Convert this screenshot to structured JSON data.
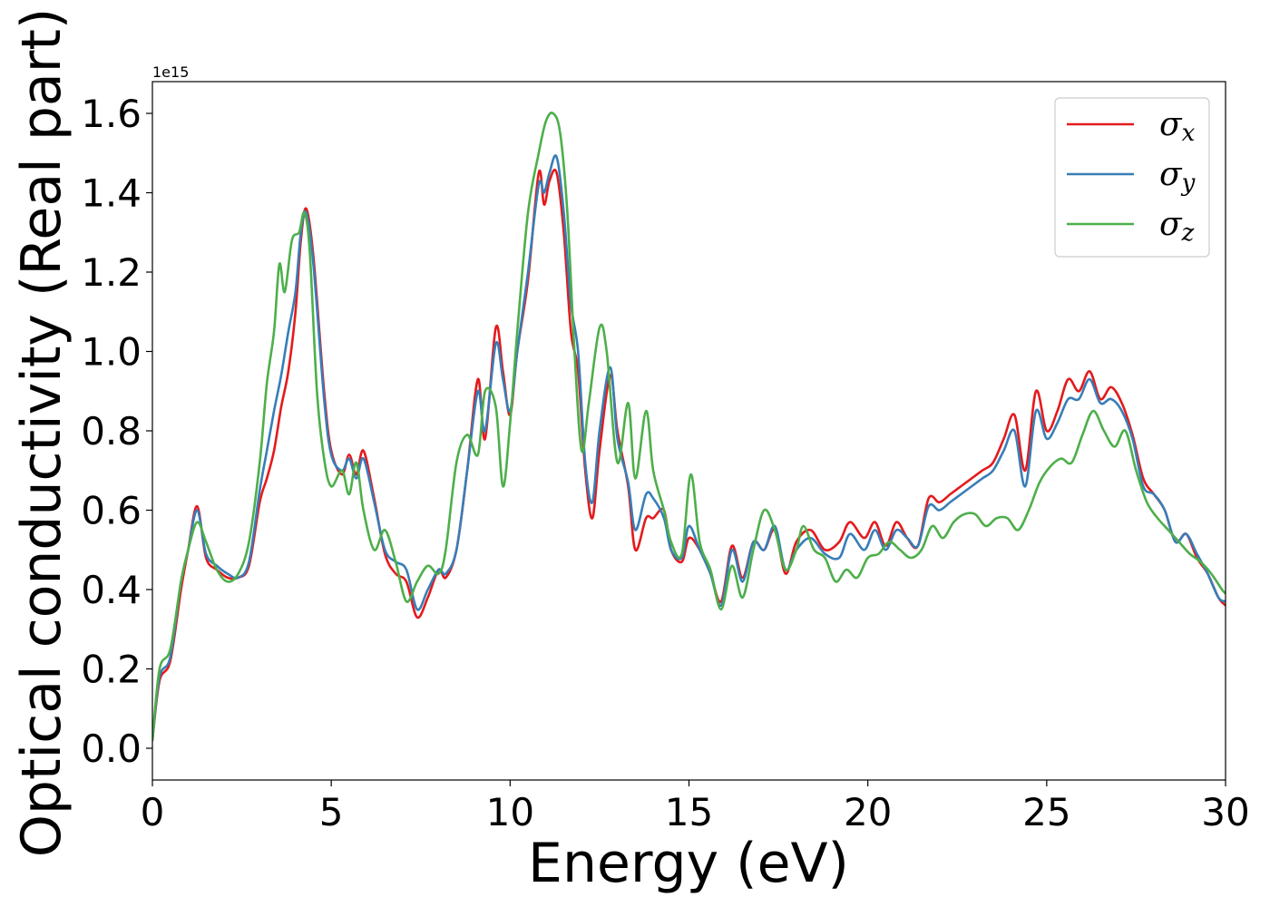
{
  "chart_data": {
    "type": "line",
    "title": "",
    "xlabel": "Energy (eV)",
    "ylabel": "Optical conductivity (Real part)",
    "y_offset_label": "1e15",
    "xlim": [
      0,
      30
    ],
    "ylim": [
      -0.08,
      1.68
    ],
    "xticks": [
      0,
      5,
      10,
      15,
      20,
      25,
      30
    ],
    "xtick_labels": [
      "0",
      "5",
      "10",
      "15",
      "20",
      "25",
      "30"
    ],
    "yticks": [
      0.0,
      0.2,
      0.4,
      0.6,
      0.8,
      1.0,
      1.2,
      1.4,
      1.6
    ],
    "ytick_labels": [
      "0.0",
      "0.2",
      "0.4",
      "0.6",
      "0.8",
      "1.0",
      "1.2",
      "1.4",
      "1.6"
    ],
    "grid": false,
    "legend_position": "top-right",
    "series": [
      {
        "name": "σx",
        "symbol": "σ",
        "subscript": "x",
        "color": "#e41a1c",
        "x": [
          0,
          0.2,
          0.5,
          0.8,
          1.0,
          1.25,
          1.5,
          1.8,
          2.1,
          2.4,
          2.7,
          3.0,
          3.2,
          3.4,
          3.6,
          3.8,
          4.0,
          4.15,
          4.3,
          4.5,
          4.8,
          5.0,
          5.3,
          5.5,
          5.7,
          5.9,
          6.2,
          6.5,
          6.8,
          7.1,
          7.4,
          7.7,
          8.0,
          8.2,
          8.5,
          8.8,
          9.1,
          9.3,
          9.6,
          9.8,
          10.0,
          10.2,
          10.5,
          10.8,
          10.95,
          11.1,
          11.3,
          11.5,
          11.7,
          11.9,
          12.1,
          12.3,
          12.5,
          12.8,
          13.0,
          13.3,
          13.5,
          13.8,
          14.0,
          14.3,
          14.5,
          14.8,
          15.0,
          15.3,
          15.6,
          15.9,
          16.2,
          16.5,
          16.8,
          17.1,
          17.4,
          17.7,
          18.0,
          18.4,
          18.8,
          19.2,
          19.5,
          19.9,
          20.2,
          20.5,
          20.8,
          21.1,
          21.4,
          21.7,
          22.0,
          22.3,
          22.6,
          22.9,
          23.2,
          23.5,
          23.8,
          24.1,
          24.4,
          24.7,
          25.0,
          25.3,
          25.6,
          25.9,
          26.2,
          26.5,
          26.8,
          27.1,
          27.4,
          27.7,
          28.0,
          28.3,
          28.6,
          28.9,
          29.2,
          29.5,
          29.8,
          30.0
        ],
        "y": [
          0.02,
          0.17,
          0.22,
          0.4,
          0.5,
          0.61,
          0.48,
          0.45,
          0.43,
          0.43,
          0.46,
          0.62,
          0.68,
          0.75,
          0.86,
          0.95,
          1.1,
          1.28,
          1.36,
          1.24,
          0.9,
          0.75,
          0.69,
          0.74,
          0.69,
          0.75,
          0.63,
          0.49,
          0.44,
          0.42,
          0.33,
          0.38,
          0.45,
          0.43,
          0.5,
          0.7,
          0.93,
          0.78,
          1.06,
          0.95,
          0.84,
          1.0,
          1.18,
          1.45,
          1.37,
          1.43,
          1.45,
          1.3,
          1.05,
          0.95,
          0.7,
          0.58,
          0.75,
          0.94,
          0.8,
          0.66,
          0.5,
          0.58,
          0.58,
          0.6,
          0.5,
          0.47,
          0.53,
          0.5,
          0.44,
          0.37,
          0.51,
          0.43,
          0.52,
          0.5,
          0.55,
          0.44,
          0.52,
          0.55,
          0.5,
          0.52,
          0.57,
          0.53,
          0.57,
          0.51,
          0.57,
          0.53,
          0.51,
          0.63,
          0.62,
          0.64,
          0.66,
          0.68,
          0.7,
          0.72,
          0.78,
          0.84,
          0.7,
          0.9,
          0.8,
          0.85,
          0.93,
          0.9,
          0.95,
          0.88,
          0.91,
          0.87,
          0.79,
          0.68,
          0.64,
          0.6,
          0.52,
          0.54,
          0.48,
          0.44,
          0.38,
          0.36
        ]
      },
      {
        "name": "σy",
        "symbol": "σ",
        "subscript": "y",
        "color": "#377eb8",
        "x": [
          0,
          0.2,
          0.5,
          0.8,
          1.0,
          1.25,
          1.5,
          1.8,
          2.1,
          2.4,
          2.7,
          3.0,
          3.2,
          3.4,
          3.6,
          3.8,
          4.0,
          4.15,
          4.3,
          4.5,
          4.8,
          5.0,
          5.3,
          5.5,
          5.7,
          5.9,
          6.2,
          6.5,
          6.8,
          7.1,
          7.4,
          7.7,
          8.0,
          8.2,
          8.5,
          8.8,
          9.1,
          9.3,
          9.6,
          9.8,
          10.0,
          10.2,
          10.5,
          10.8,
          10.95,
          11.1,
          11.3,
          11.5,
          11.7,
          11.9,
          12.1,
          12.3,
          12.5,
          12.8,
          13.0,
          13.3,
          13.5,
          13.8,
          14.0,
          14.3,
          14.5,
          14.8,
          15.0,
          15.3,
          15.6,
          15.9,
          16.2,
          16.5,
          16.8,
          17.1,
          17.4,
          17.7,
          18.0,
          18.4,
          18.8,
          19.2,
          19.5,
          19.9,
          20.2,
          20.5,
          20.8,
          21.1,
          21.4,
          21.7,
          22.0,
          22.3,
          22.6,
          22.9,
          23.2,
          23.5,
          23.8,
          24.1,
          24.4,
          24.7,
          25.0,
          25.3,
          25.6,
          25.9,
          26.2,
          26.5,
          26.8,
          27.1,
          27.4,
          27.7,
          28.0,
          28.3,
          28.6,
          28.9,
          29.2,
          29.5,
          29.8,
          30.0
        ],
        "y": [
          0.02,
          0.18,
          0.23,
          0.42,
          0.5,
          0.6,
          0.49,
          0.46,
          0.44,
          0.43,
          0.47,
          0.65,
          0.75,
          0.85,
          0.94,
          1.05,
          1.15,
          1.3,
          1.35,
          1.22,
          0.88,
          0.74,
          0.7,
          0.73,
          0.68,
          0.73,
          0.62,
          0.5,
          0.47,
          0.45,
          0.35,
          0.4,
          0.45,
          0.44,
          0.5,
          0.7,
          0.9,
          0.8,
          1.02,
          0.93,
          0.85,
          1.0,
          1.2,
          1.42,
          1.4,
          1.45,
          1.49,
          1.35,
          1.12,
          1.0,
          0.72,
          0.62,
          0.8,
          0.96,
          0.78,
          0.67,
          0.55,
          0.64,
          0.63,
          0.58,
          0.5,
          0.48,
          0.56,
          0.5,
          0.44,
          0.36,
          0.5,
          0.42,
          0.52,
          0.5,
          0.56,
          0.45,
          0.5,
          0.53,
          0.49,
          0.48,
          0.54,
          0.5,
          0.55,
          0.5,
          0.55,
          0.53,
          0.51,
          0.61,
          0.6,
          0.62,
          0.64,
          0.66,
          0.68,
          0.7,
          0.75,
          0.8,
          0.66,
          0.85,
          0.78,
          0.82,
          0.88,
          0.88,
          0.93,
          0.87,
          0.88,
          0.85,
          0.78,
          0.66,
          0.64,
          0.6,
          0.52,
          0.54,
          0.49,
          0.44,
          0.38,
          0.37
        ]
      },
      {
        "name": "σz",
        "symbol": "σ",
        "subscript": "z",
        "color": "#4daf4a",
        "x": [
          0,
          0.2,
          0.5,
          0.8,
          1.0,
          1.25,
          1.5,
          1.8,
          2.1,
          2.4,
          2.7,
          3.0,
          3.2,
          3.4,
          3.55,
          3.7,
          3.9,
          4.1,
          4.25,
          4.4,
          4.6,
          4.8,
          5.0,
          5.3,
          5.5,
          5.7,
          5.9,
          6.2,
          6.5,
          6.8,
          7.1,
          7.4,
          7.7,
          8.0,
          8.2,
          8.5,
          8.8,
          9.1,
          9.3,
          9.6,
          9.8,
          10.0,
          10.2,
          10.5,
          10.8,
          11.0,
          11.2,
          11.4,
          11.6,
          11.8,
          12.0,
          12.2,
          12.5,
          12.7,
          13.0,
          13.3,
          13.5,
          13.8,
          14.0,
          14.3,
          14.5,
          14.8,
          15.05,
          15.3,
          15.6,
          15.9,
          16.2,
          16.5,
          16.8,
          17.1,
          17.4,
          17.7,
          18.0,
          18.2,
          18.5,
          18.8,
          19.1,
          19.4,
          19.7,
          20.0,
          20.3,
          20.6,
          20.9,
          21.2,
          21.5,
          21.8,
          22.1,
          22.4,
          22.7,
          23.0,
          23.3,
          23.6,
          23.9,
          24.2,
          24.5,
          24.8,
          25.1,
          25.4,
          25.7,
          26.0,
          26.3,
          26.6,
          26.9,
          27.2,
          27.5,
          27.8,
          28.1,
          28.4,
          28.7,
          29.0,
          29.3,
          29.6,
          29.9,
          30.0
        ],
        "y": [
          0.02,
          0.2,
          0.25,
          0.42,
          0.5,
          0.57,
          0.52,
          0.45,
          0.42,
          0.44,
          0.52,
          0.72,
          0.92,
          1.05,
          1.22,
          1.15,
          1.28,
          1.3,
          1.35,
          1.25,
          0.9,
          0.73,
          0.66,
          0.7,
          0.64,
          0.72,
          0.6,
          0.5,
          0.55,
          0.47,
          0.37,
          0.42,
          0.46,
          0.44,
          0.5,
          0.72,
          0.79,
          0.74,
          0.9,
          0.86,
          0.66,
          0.82,
          1.05,
          1.35,
          1.5,
          1.58,
          1.6,
          1.55,
          1.35,
          1.0,
          0.75,
          0.87,
          1.06,
          1.0,
          0.72,
          0.87,
          0.68,
          0.85,
          0.7,
          0.6,
          0.52,
          0.49,
          0.69,
          0.52,
          0.45,
          0.35,
          0.46,
          0.38,
          0.5,
          0.6,
          0.55,
          0.45,
          0.5,
          0.56,
          0.5,
          0.48,
          0.42,
          0.45,
          0.43,
          0.48,
          0.49,
          0.52,
          0.5,
          0.48,
          0.5,
          0.56,
          0.53,
          0.57,
          0.59,
          0.59,
          0.56,
          0.58,
          0.58,
          0.55,
          0.6,
          0.67,
          0.71,
          0.73,
          0.72,
          0.79,
          0.85,
          0.8,
          0.76,
          0.8,
          0.7,
          0.62,
          0.58,
          0.55,
          0.52,
          0.49,
          0.47,
          0.44,
          0.4,
          0.39
        ]
      }
    ]
  }
}
